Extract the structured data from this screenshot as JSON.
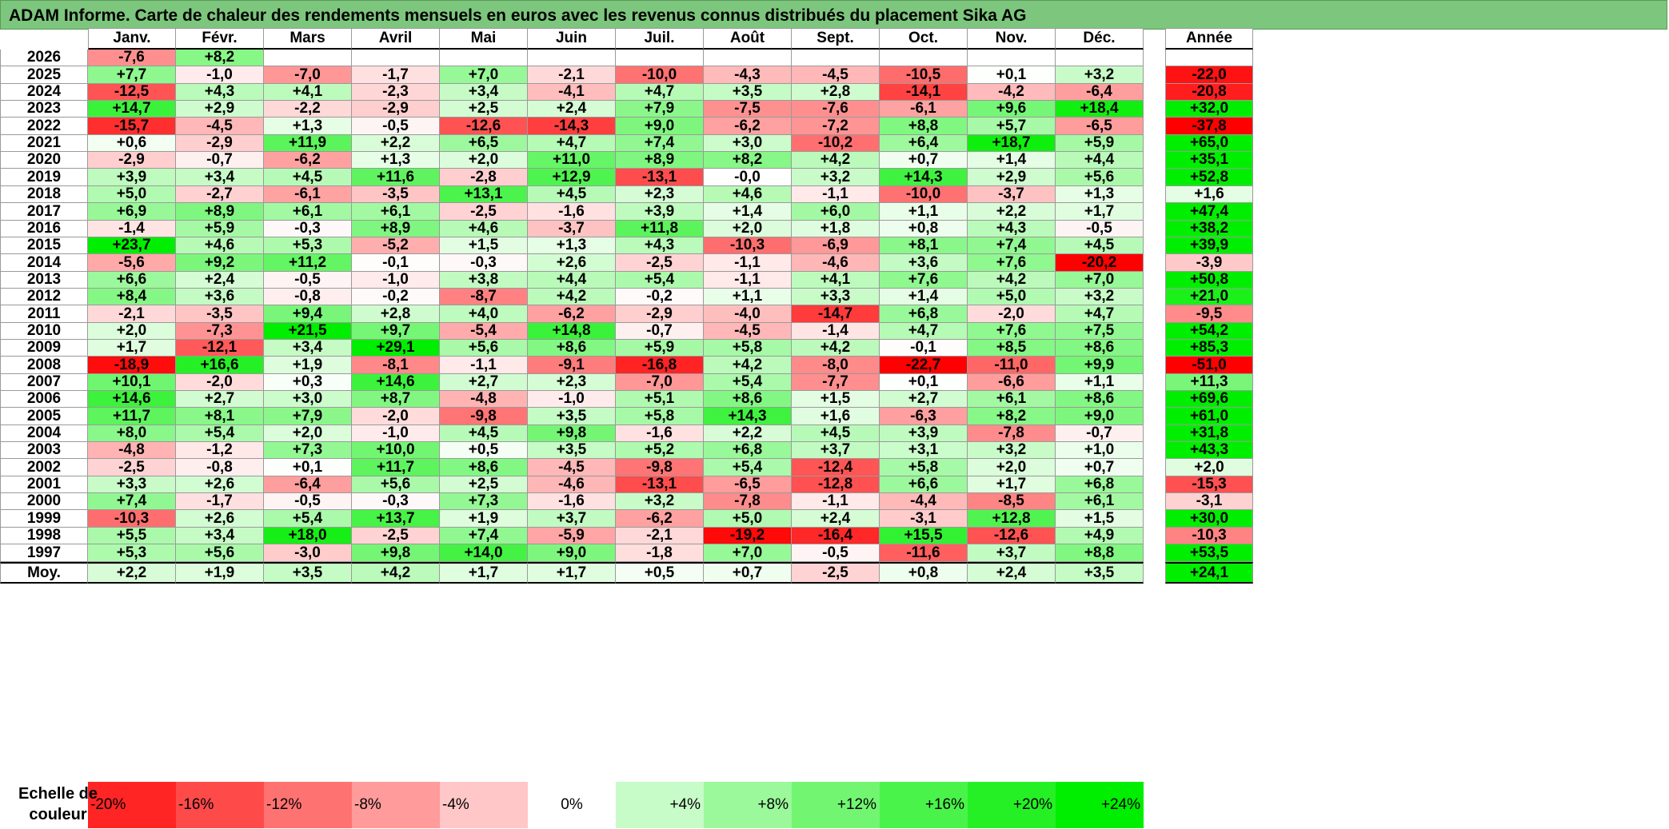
{
  "title": "ADAM Informe. Carte de chaleur des rendements mensuels en euros avec les revenus connus distribués du placement Sika AG",
  "colors": {
    "negative_max": "#ff0000",
    "positive_max": "#00ee00",
    "neutral": "#ffffff"
  },
  "chart_data": {
    "type": "heatmap",
    "title": "ADAM Informe. Carte de chaleur des rendements mensuels en euros avec les revenus connus distribués du placement Sika AG",
    "months": [
      "Janv.",
      "Févr.",
      "Mars",
      "Avril",
      "Mai",
      "Juin",
      "Juil.",
      "Août",
      "Sept.",
      "Oct.",
      "Nov.",
      "Déc."
    ],
    "annual_header": "Année",
    "rows": [
      {
        "year": "2026",
        "values": [
          "-7,6",
          "+8,2",
          "",
          "",
          "",
          "",
          "",
          "",
          "",
          "",
          "",
          ""
        ],
        "annual": ""
      },
      {
        "year": "2025",
        "values": [
          "+7,7",
          "-1,0",
          "-7,0",
          "-1,7",
          "+7,0",
          "-2,1",
          "-10,0",
          "-4,3",
          "-4,5",
          "-10,5",
          "+0,1",
          "+3,2"
        ],
        "annual": "-22,0"
      },
      {
        "year": "2024",
        "values": [
          "-12,5",
          "+4,3",
          "+4,1",
          "-2,3",
          "+3,4",
          "-4,1",
          "+4,7",
          "+3,5",
          "+2,8",
          "-14,1",
          "-4,2",
          "-6,4"
        ],
        "annual": "-20,8"
      },
      {
        "year": "2023",
        "values": [
          "+14,7",
          "+2,9",
          "-2,2",
          "-2,9",
          "+2,5",
          "+2,4",
          "+7,9",
          "-7,5",
          "-7,6",
          "-6,1",
          "+9,6",
          "+18,4"
        ],
        "annual": "+32,0"
      },
      {
        "year": "2022",
        "values": [
          "-15,7",
          "-4,5",
          "+1,3",
          "-0,5",
          "-12,6",
          "-14,3",
          "+9,0",
          "-6,2",
          "-7,2",
          "+8,8",
          "+5,7",
          "-6,5"
        ],
        "annual": "-37,8"
      },
      {
        "year": "2021",
        "values": [
          "+0,6",
          "-2,9",
          "+11,9",
          "+2,2",
          "+6,5",
          "+4,7",
          "+7,4",
          "+3,0",
          "-10,2",
          "+6,4",
          "+18,7",
          "+5,9"
        ],
        "annual": "+65,0"
      },
      {
        "year": "2020",
        "values": [
          "-2,9",
          "-0,7",
          "-6,2",
          "+1,3",
          "+2,0",
          "+11,0",
          "+8,9",
          "+8,2",
          "+4,2",
          "+0,7",
          "+1,4",
          "+4,4"
        ],
        "annual": "+35,1"
      },
      {
        "year": "2019",
        "values": [
          "+3,9",
          "+3,4",
          "+4,5",
          "+11,6",
          "-2,8",
          "+12,9",
          "-13,1",
          "-0,0",
          "+3,2",
          "+14,3",
          "+2,9",
          "+5,6"
        ],
        "annual": "+52,8"
      },
      {
        "year": "2018",
        "values": [
          "+5,0",
          "-2,7",
          "-6,1",
          "-3,5",
          "+13,1",
          "+4,5",
          "+2,3",
          "+4,6",
          "-1,1",
          "-10,0",
          "-3,7",
          "+1,3"
        ],
        "annual": "+1,6"
      },
      {
        "year": "2017",
        "values": [
          "+6,9",
          "+8,9",
          "+6,1",
          "+6,1",
          "-2,5",
          "-1,6",
          "+3,9",
          "+1,4",
          "+6,0",
          "+1,1",
          "+2,2",
          "+1,7"
        ],
        "annual": "+47,4"
      },
      {
        "year": "2016",
        "values": [
          "-1,4",
          "+5,9",
          "-0,3",
          "+8,9",
          "+4,6",
          "-3,7",
          "+11,8",
          "+2,0",
          "+1,8",
          "+0,8",
          "+4,3",
          "-0,5"
        ],
        "annual": "+38,2"
      },
      {
        "year": "2015",
        "values": [
          "+23,7",
          "+4,6",
          "+5,3",
          "-5,2",
          "+1,5",
          "+1,3",
          "+4,3",
          "-10,3",
          "-6,9",
          "+8,1",
          "+7,4",
          "+4,5"
        ],
        "annual": "+39,9"
      },
      {
        "year": "2014",
        "values": [
          "-5,6",
          "+9,2",
          "+11,2",
          "-0,1",
          "-0,3",
          "+2,6",
          "-2,5",
          "-1,1",
          "-4,6",
          "+3,6",
          "+7,6",
          "-20,2"
        ],
        "annual": "-3,9"
      },
      {
        "year": "2013",
        "values": [
          "+6,6",
          "+2,4",
          "-0,5",
          "-1,0",
          "+3,8",
          "+4,4",
          "+5,4",
          "-1,1",
          "+4,1",
          "+7,6",
          "+4,2",
          "+7,0"
        ],
        "annual": "+50,8"
      },
      {
        "year": "2012",
        "values": [
          "+8,4",
          "+3,6",
          "-0,8",
          "-0,2",
          "-8,7",
          "+4,2",
          "-0,2",
          "+1,1",
          "+3,3",
          "+1,4",
          "+5,0",
          "+3,2"
        ],
        "annual": "+21,0"
      },
      {
        "year": "2011",
        "values": [
          "-2,1",
          "-3,5",
          "+9,4",
          "+2,8",
          "+4,0",
          "-6,2",
          "-2,9",
          "-4,0",
          "-14,7",
          "+6,8",
          "-2,0",
          "+4,7"
        ],
        "annual": "-9,5"
      },
      {
        "year": "2010",
        "values": [
          "+2,0",
          "-7,3",
          "+21,5",
          "+9,7",
          "-5,4",
          "+14,8",
          "-0,7",
          "-4,5",
          "-1,4",
          "+4,7",
          "+7,6",
          "+7,5"
        ],
        "annual": "+54,2"
      },
      {
        "year": "2009",
        "values": [
          "+1,7",
          "-12,1",
          "+3,4",
          "+29,1",
          "+5,6",
          "+8,6",
          "+5,9",
          "+5,8",
          "+4,2",
          "-0,1",
          "+8,5",
          "+8,6"
        ],
        "annual": "+85,3"
      },
      {
        "year": "2008",
        "values": [
          "-18,9",
          "+16,6",
          "+1,9",
          "-8,1",
          "-1,1",
          "-9,1",
          "-16,8",
          "+4,2",
          "-8,0",
          "-22,7",
          "-11,0",
          "+9,9"
        ],
        "annual": "-51,0"
      },
      {
        "year": "2007",
        "values": [
          "+10,1",
          "-2,0",
          "+0,3",
          "+14,6",
          "+2,7",
          "+2,3",
          "-7,0",
          "+5,4",
          "-7,7",
          "+0,1",
          "-6,6",
          "+1,1"
        ],
        "annual": "+11,3"
      },
      {
        "year": "2006",
        "values": [
          "+14,6",
          "+2,7",
          "+3,0",
          "+8,7",
          "-4,8",
          "-1,0",
          "+5,1",
          "+8,6",
          "+1,5",
          "+2,7",
          "+6,1",
          "+8,6"
        ],
        "annual": "+69,6"
      },
      {
        "year": "2005",
        "values": [
          "+11,7",
          "+8,1",
          "+7,9",
          "-2,0",
          "-9,8",
          "+3,5",
          "+5,8",
          "+14,3",
          "+1,6",
          "-6,3",
          "+8,2",
          "+9,0"
        ],
        "annual": "+61,0"
      },
      {
        "year": "2004",
        "values": [
          "+8,0",
          "+5,4",
          "+2,0",
          "-1,0",
          "+4,5",
          "+9,8",
          "-1,6",
          "+2,2",
          "+4,5",
          "+3,9",
          "-7,8",
          "-0,7"
        ],
        "annual": "+31,8"
      },
      {
        "year": "2003",
        "values": [
          "-4,8",
          "-1,2",
          "+7,3",
          "+10,0",
          "+0,5",
          "+3,5",
          "+5,2",
          "+6,8",
          "+3,7",
          "+3,1",
          "+3,2",
          "+1,0"
        ],
        "annual": "+43,3"
      },
      {
        "year": "2002",
        "values": [
          "-2,5",
          "-0,8",
          "+0,1",
          "+11,7",
          "+8,6",
          "-4,5",
          "-9,8",
          "+5,4",
          "-12,4",
          "+5,8",
          "+2,0",
          "+0,7"
        ],
        "annual": "+2,0"
      },
      {
        "year": "2001",
        "values": [
          "+3,3",
          "+2,6",
          "-6,4",
          "+5,6",
          "+2,5",
          "-4,6",
          "-13,1",
          "-6,5",
          "-12,8",
          "+6,6",
          "+1,7",
          "+6,8"
        ],
        "annual": "-15,3"
      },
      {
        "year": "2000",
        "values": [
          "+7,4",
          "-1,7",
          "-0,5",
          "-0,3",
          "+7,3",
          "-1,6",
          "+3,2",
          "-7,8",
          "-1,1",
          "-4,4",
          "-8,5",
          "+6,1"
        ],
        "annual": "-3,1"
      },
      {
        "year": "1999",
        "values": [
          "-10,3",
          "+2,6",
          "+5,4",
          "+13,7",
          "+1,9",
          "+3,7",
          "-6,2",
          "+5,0",
          "+2,4",
          "-3,1",
          "+12,8",
          "+1,5"
        ],
        "annual": "+30,0"
      },
      {
        "year": "1998",
        "values": [
          "+5,5",
          "+3,4",
          "+18,0",
          "-2,5",
          "+7,4",
          "-5,9",
          "-2,1",
          "-19,2",
          "-16,4",
          "+15,5",
          "-12,6",
          "+4,9"
        ],
        "annual": "-10,3"
      },
      {
        "year": "1997",
        "values": [
          "+5,3",
          "+5,6",
          "-3,0",
          "+9,8",
          "+14,0",
          "+9,0",
          "-1,8",
          "+7,0",
          "-0,5",
          "-11,6",
          "+3,7",
          "+8,8"
        ],
        "annual": "+53,5"
      }
    ],
    "average": {
      "label": "Moy.",
      "values": [
        "+2,2",
        "+1,9",
        "+3,5",
        "+4,2",
        "+1,7",
        "+1,7",
        "+0,5",
        "+0,7",
        "-2,5",
        "+0,8",
        "+2,4",
        "+3,5"
      ],
      "annual": "+24,1"
    },
    "legend": {
      "label": "Echelle de couleur",
      "stops": [
        "-20%",
        "-16%",
        "-12%",
        "-8%",
        "-4%",
        "0%",
        "+4%",
        "+8%",
        "+12%",
        "+16%",
        "+20%",
        "+24%"
      ],
      "stop_values": [
        -20,
        -16,
        -12,
        -8,
        -4,
        0,
        4,
        8,
        12,
        16,
        20,
        24
      ]
    }
  }
}
